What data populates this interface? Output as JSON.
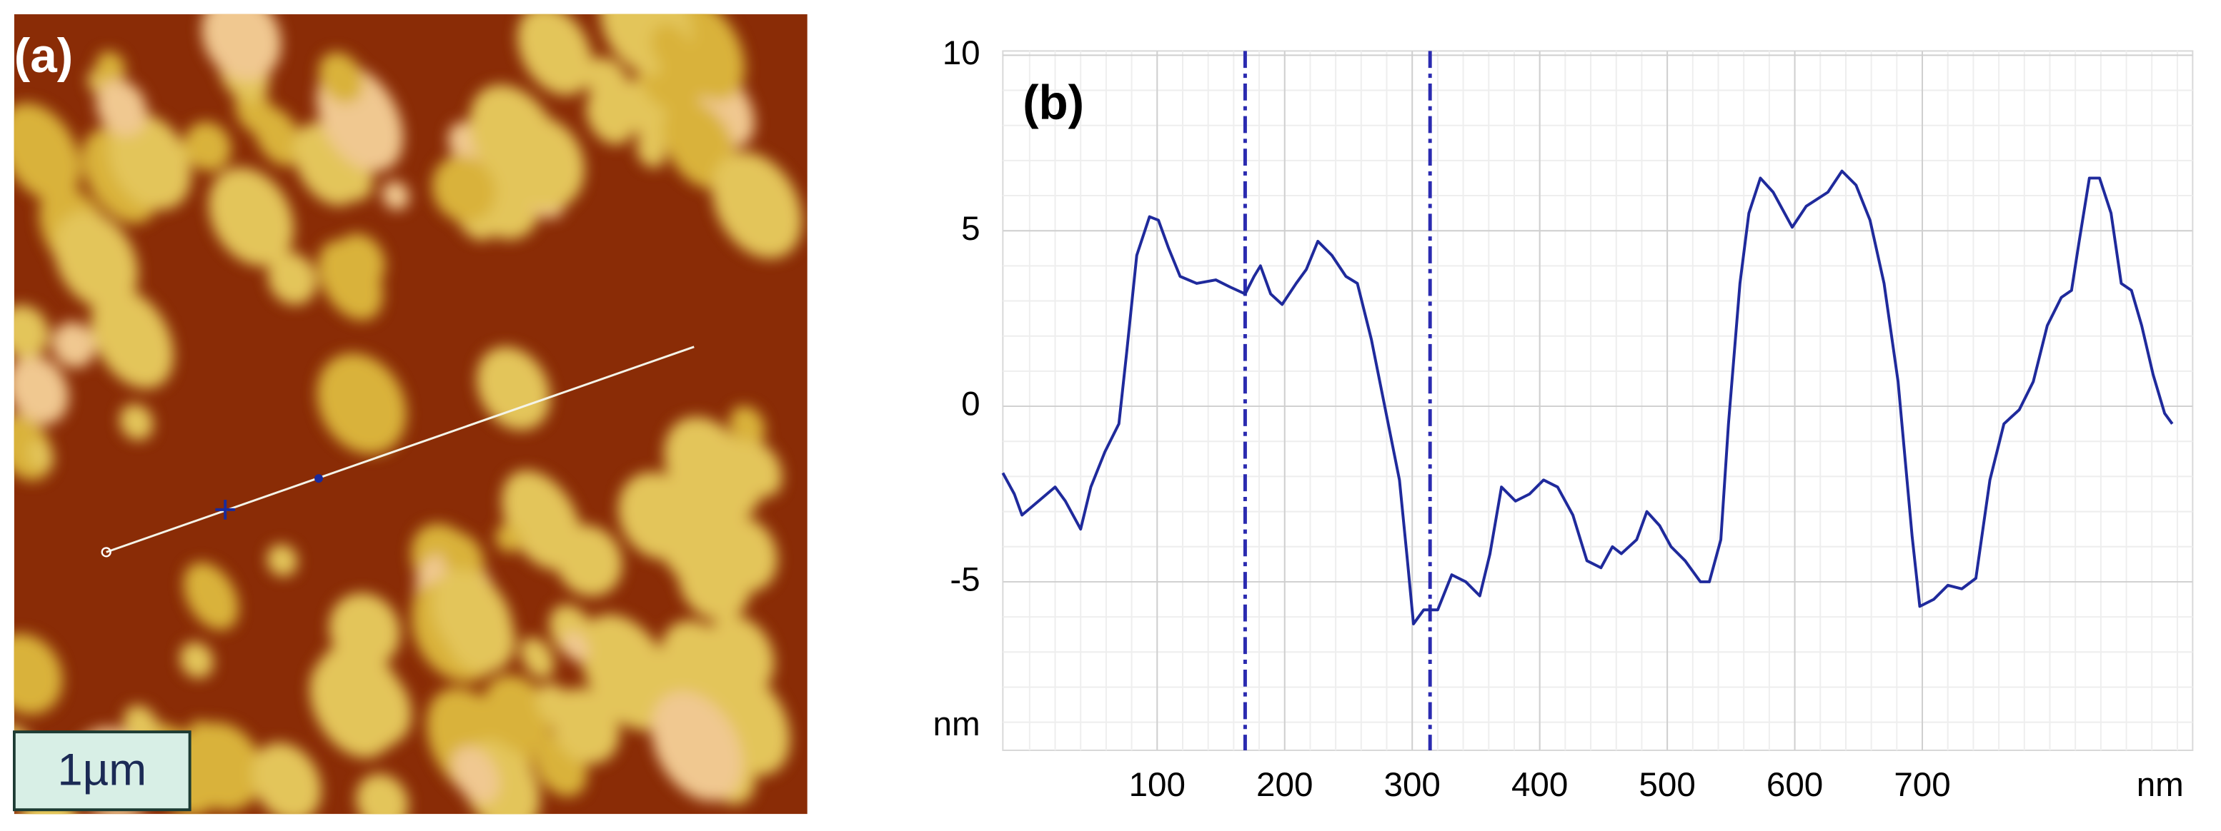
{
  "panel_a": {
    "label": "(a)",
    "scale_bar": "1µm"
  },
  "chart_data": {
    "type": "line",
    "panel_label": "(b)",
    "x_unit": "nm",
    "y_unit": "nm",
    "x": [
      -21,
      -12,
      -6,
      7,
      20,
      28,
      40,
      48,
      59,
      70,
      76,
      84,
      94,
      101,
      109,
      118,
      131,
      146,
      157,
      169,
      176,
      181,
      189,
      198,
      209,
      217,
      226,
      237,
      248,
      257,
      268,
      279,
      290,
      296,
      301,
      309,
      320,
      331,
      342,
      353,
      361,
      370,
      381,
      392,
      403,
      414,
      426,
      437,
      448,
      457,
      464,
      476,
      484,
      494,
      503,
      514,
      526,
      533,
      542,
      548,
      557,
      564,
      573,
      583,
      598,
      609,
      626,
      637,
      648,
      659,
      670,
      681,
      692,
      698,
      709,
      720,
      731,
      742,
      753,
      764,
      776,
      787,
      798,
      809,
      817,
      823,
      831,
      839,
      848,
      856,
      864,
      872,
      881,
      890,
      896
    ],
    "series": [
      {
        "color": "#1f2a9c",
        "values": [
          -1.9,
          -2.5,
          -3.1,
          -2.7,
          -2.3,
          -2.7,
          -3.5,
          -2.3,
          -1.3,
          -0.5,
          1.5,
          4.3,
          5.4,
          5.3,
          4.5,
          3.7,
          3.5,
          3.6,
          3.4,
          3.2,
          3.7,
          4.0,
          3.2,
          2.9,
          3.5,
          3.9,
          4.7,
          4.3,
          3.7,
          3.5,
          1.9,
          -0.1,
          -2.1,
          -4.3,
          -6.2,
          -5.8,
          -5.8,
          -4.8,
          -5.0,
          -5.4,
          -4.2,
          -2.3,
          -2.7,
          -2.5,
          -2.1,
          -2.3,
          -3.1,
          -4.4,
          -4.6,
          -4.0,
          -4.2,
          -3.8,
          -3.0,
          -3.4,
          -4.0,
          -4.4,
          -5.0,
          -5.0,
          -3.8,
          -0.5,
          3.5,
          5.5,
          6.5,
          6.1,
          5.1,
          5.7,
          6.1,
          6.7,
          6.3,
          5.3,
          3.5,
          0.7,
          -3.7,
          -5.7,
          -5.5,
          -5.1,
          -5.2,
          -4.9,
          -2.1,
          -0.5,
          -0.1,
          0.7,
          2.3,
          3.1,
          3.3,
          4.7,
          6.5,
          6.5,
          5.5,
          3.5,
          3.3,
          2.3,
          0.9,
          -0.2,
          -0.5
        ]
      }
    ],
    "cursors": [
      169,
      314
    ],
    "cursor_color": "#2b2bb0",
    "xlim": [
      -21,
      912
    ],
    "ylim": [
      -9.8,
      10
    ],
    "xticks": [
      100,
      200,
      300,
      400,
      500,
      600,
      700
    ],
    "yticks": [
      -5,
      0,
      5,
      10
    ],
    "grid": true
  }
}
